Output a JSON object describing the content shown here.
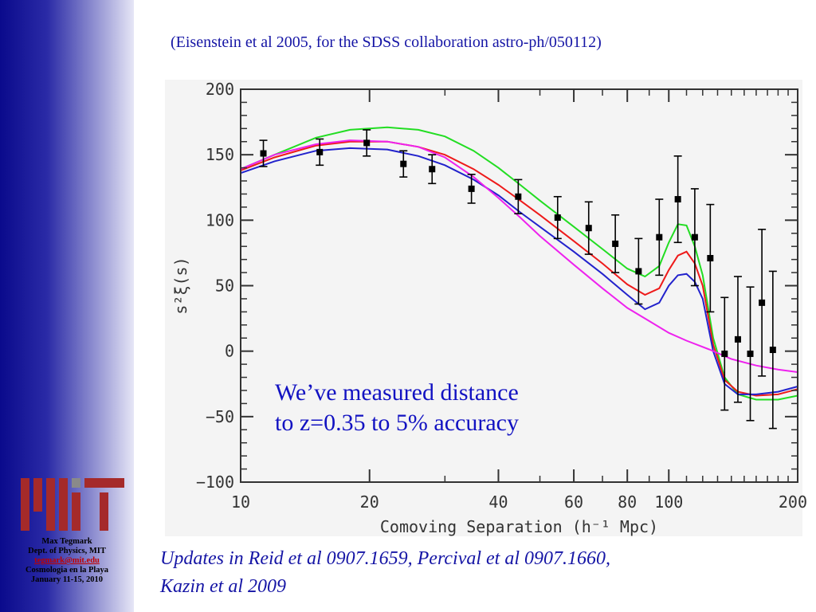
{
  "slide": {
    "citation": "(Eisenstein et al 2005, for the SDSS collaboration astro-ph/050112)",
    "note_line1": "We’ve measured distance",
    "note_line2": "to z=0.35 to 5% accuracy",
    "updates_line1": "Updates in Reid et al 0907.1659, Percival et al 0907.1660,",
    "updates_line2": "Kazin et al 2009"
  },
  "sidebar": {
    "logo": "MIT",
    "name": "Max Tegmark",
    "dept": "Dept. of Physics, MIT",
    "email": "tegmark@mit.edu",
    "event": "Cosmologia en la Playa",
    "dates": "January 11-15, 2010"
  },
  "colors": {
    "sidebar_dark": "#0a0a8c",
    "text_blue": "#1515a5",
    "logo_red": "#a52a2a",
    "logo_gray": "#8a8a8a"
  },
  "chart_data": {
    "type": "line",
    "title": "",
    "xlabel": "Comoving Separation (h⁻¹ Mpc)",
    "ylabel": "s²ξ(s)",
    "xscale": "log",
    "xlim": [
      10,
      200
    ],
    "ylim": [
      -100,
      200
    ],
    "xticks": [
      10,
      20,
      40,
      60,
      80,
      100,
      200
    ],
    "yticks": [
      -100,
      -50,
      0,
      50,
      100,
      150,
      200
    ],
    "ytick_labels": [
      "−100",
      "−50",
      "0",
      "50",
      "100",
      "150",
      "200"
    ],
    "grid": false,
    "series": [
      {
        "color": "#22dd22",
        "points": [
          [
            10,
            139
          ],
          [
            12,
            150
          ],
          [
            15,
            163
          ],
          [
            18,
            169
          ],
          [
            22,
            171
          ],
          [
            26,
            169
          ],
          [
            30,
            164
          ],
          [
            35,
            153
          ],
          [
            40,
            140
          ],
          [
            45,
            127
          ],
          [
            50,
            115
          ],
          [
            60,
            95
          ],
          [
            70,
            78
          ],
          [
            80,
            63
          ],
          [
            88,
            57
          ],
          [
            95,
            65
          ],
          [
            100,
            83
          ],
          [
            105,
            97
          ],
          [
            110,
            96
          ],
          [
            115,
            80
          ],
          [
            120,
            58
          ],
          [
            127,
            10
          ],
          [
            135,
            -20
          ],
          [
            145,
            -33
          ],
          [
            160,
            -37
          ],
          [
            180,
            -37
          ],
          [
            200,
            -34
          ]
        ]
      },
      {
        "color": "#ee1a1a",
        "points": [
          [
            10,
            138
          ],
          [
            12,
            148
          ],
          [
            15,
            157
          ],
          [
            18,
            160
          ],
          [
            22,
            160
          ],
          [
            26,
            156
          ],
          [
            30,
            150
          ],
          [
            35,
            139
          ],
          [
            40,
            127
          ],
          [
            45,
            115
          ],
          [
            50,
            104
          ],
          [
            60,
            84
          ],
          [
            70,
            67
          ],
          [
            80,
            51
          ],
          [
            88,
            43
          ],
          [
            95,
            48
          ],
          [
            100,
            62
          ],
          [
            105,
            73
          ],
          [
            110,
            76
          ],
          [
            115,
            67
          ],
          [
            120,
            50
          ],
          [
            127,
            5
          ],
          [
            135,
            -22
          ],
          [
            145,
            -31
          ],
          [
            160,
            -34
          ],
          [
            180,
            -33
          ],
          [
            200,
            -29
          ]
        ]
      },
      {
        "color": "#2222cc",
        "points": [
          [
            10,
            136
          ],
          [
            12,
            145
          ],
          [
            15,
            153
          ],
          [
            18,
            155
          ],
          [
            22,
            154
          ],
          [
            26,
            149
          ],
          [
            30,
            142
          ],
          [
            35,
            131
          ],
          [
            40,
            119
          ],
          [
            45,
            106
          ],
          [
            50,
            95
          ],
          [
            60,
            76
          ],
          [
            70,
            59
          ],
          [
            80,
            43
          ],
          [
            88,
            32
          ],
          [
            95,
            37
          ],
          [
            100,
            50
          ],
          [
            105,
            58
          ],
          [
            110,
            59
          ],
          [
            115,
            53
          ],
          [
            120,
            40
          ],
          [
            127,
            0
          ],
          [
            135,
            -25
          ],
          [
            145,
            -33
          ],
          [
            160,
            -33
          ],
          [
            180,
            -31
          ],
          [
            200,
            -27
          ]
        ]
      },
      {
        "color": "#ee22ee",
        "points": [
          [
            10,
            139
          ],
          [
            12,
            150
          ],
          [
            15,
            158
          ],
          [
            18,
            161
          ],
          [
            22,
            160
          ],
          [
            26,
            156
          ],
          [
            30,
            148
          ],
          [
            35,
            133
          ],
          [
            40,
            117
          ],
          [
            45,
            102
          ],
          [
            50,
            88
          ],
          [
            60,
            66
          ],
          [
            70,
            48
          ],
          [
            80,
            33
          ],
          [
            90,
            23
          ],
          [
            100,
            14
          ],
          [
            110,
            8
          ],
          [
            125,
            1
          ],
          [
            140,
            -6
          ],
          [
            160,
            -11
          ],
          [
            180,
            -14
          ],
          [
            200,
            -16
          ]
        ]
      }
    ],
    "points": [
      {
        "x": 11.3,
        "y": 151,
        "err": 10
      },
      {
        "x": 15.3,
        "y": 152,
        "err": 10
      },
      {
        "x": 19.7,
        "y": 159,
        "err": 10
      },
      {
        "x": 24.0,
        "y": 143,
        "err": 10
      },
      {
        "x": 28.0,
        "y": 139,
        "err": 11
      },
      {
        "x": 34.6,
        "y": 124,
        "err": 11
      },
      {
        "x": 44.5,
        "y": 118,
        "err": 13
      },
      {
        "x": 55.0,
        "y": 102,
        "err": 16
      },
      {
        "x": 65.0,
        "y": 94,
        "err": 20
      },
      {
        "x": 75.0,
        "y": 82,
        "err": 22
      },
      {
        "x": 85.0,
        "y": 61,
        "err": 25
      },
      {
        "x": 95.0,
        "y": 87,
        "err": 29
      },
      {
        "x": 105.0,
        "y": 116,
        "err": 33
      },
      {
        "x": 115.0,
        "y": 87,
        "err": 37
      },
      {
        "x": 125.0,
        "y": 71,
        "err": 41
      },
      {
        "x": 135.0,
        "y": -2,
        "err": 43
      },
      {
        "x": 145.0,
        "y": 9,
        "err": 48
      },
      {
        "x": 155.0,
        "y": -2,
        "err": 51
      },
      {
        "x": 165.0,
        "y": 37,
        "err": 56
      },
      {
        "x": 175.0,
        "y": 1,
        "err": 60
      }
    ]
  }
}
